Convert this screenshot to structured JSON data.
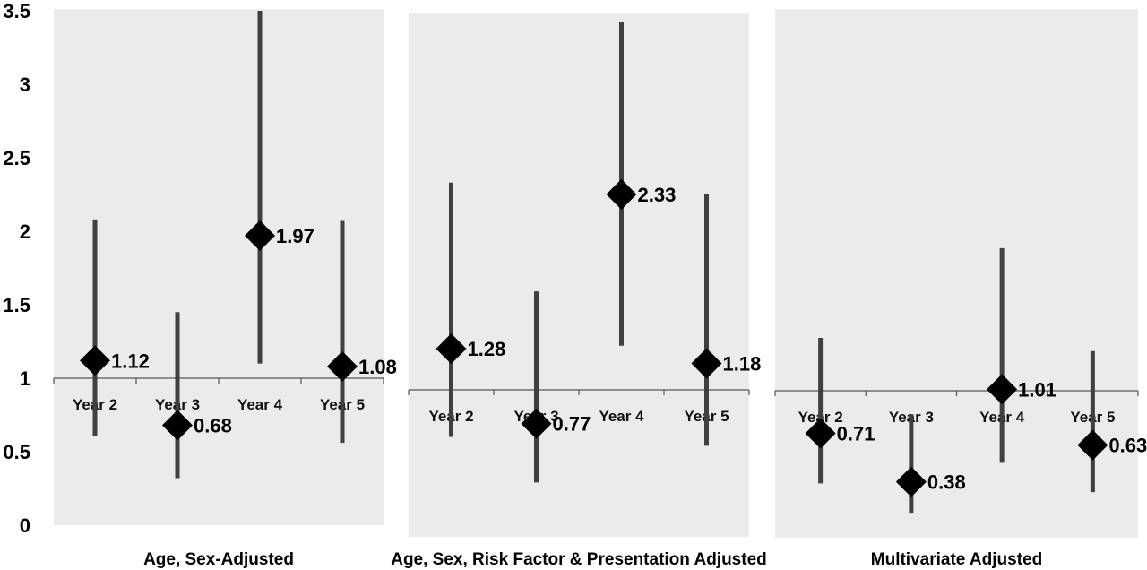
{
  "chart_data": {
    "type": "scatter",
    "y_axis": {
      "ticks": [
        "0",
        "0.5",
        "1",
        "1.5",
        "2",
        "2.5",
        "3",
        "3.5"
      ],
      "ylim": [
        0,
        3.5
      ]
    },
    "reference_line": 1,
    "marker": "diamond",
    "colors": {
      "panel_bg": "#ebebeb",
      "marker": "#000000",
      "error_bar": "#404040",
      "axis_line": "#555555"
    },
    "categories": [
      "Year 2",
      "Year 3",
      "Year 4",
      "Year 5"
    ],
    "panels": [
      {
        "title": "Age, Sex-Adjusted",
        "points": [
          {
            "label": "1.12",
            "value": 1.12,
            "lower": 0.61,
            "upper": 2.08
          },
          {
            "label": "0.68",
            "value": 0.68,
            "lower": 0.32,
            "upper": 1.45
          },
          {
            "label": "1.97",
            "value": 1.97,
            "lower": 1.1,
            "upper": 3.5
          },
          {
            "label": "1.08",
            "value": 1.08,
            "lower": 0.56,
            "upper": 2.07
          }
        ]
      },
      {
        "title": "Age, Sex, Risk Factor & Presentation Adjusted",
        "points": [
          {
            "label": "1.28",
            "value": 1.28,
            "lower": 0.68,
            "upper": 2.41
          },
          {
            "label": "0.77",
            "value": 0.77,
            "lower": 0.37,
            "upper": 1.67
          },
          {
            "label": "2.33",
            "value": 2.33,
            "lower": 1.3,
            "upper": 3.5
          },
          {
            "label": "1.18",
            "value": 1.18,
            "lower": 0.62,
            "upper": 2.33
          }
        ]
      },
      {
        "title": "Multivariate Adjusted",
        "points": [
          {
            "label": "0.71",
            "value": 0.71,
            "lower": 0.37,
            "upper": 1.36
          },
          {
            "label": "0.38",
            "value": 0.38,
            "lower": 0.17,
            "upper": 0.84
          },
          {
            "label": "1.01",
            "value": 1.01,
            "lower": 0.51,
            "upper": 1.97
          },
          {
            "label": "0.63",
            "value": 0.63,
            "lower": 0.31,
            "upper": 1.27
          }
        ]
      }
    ]
  }
}
